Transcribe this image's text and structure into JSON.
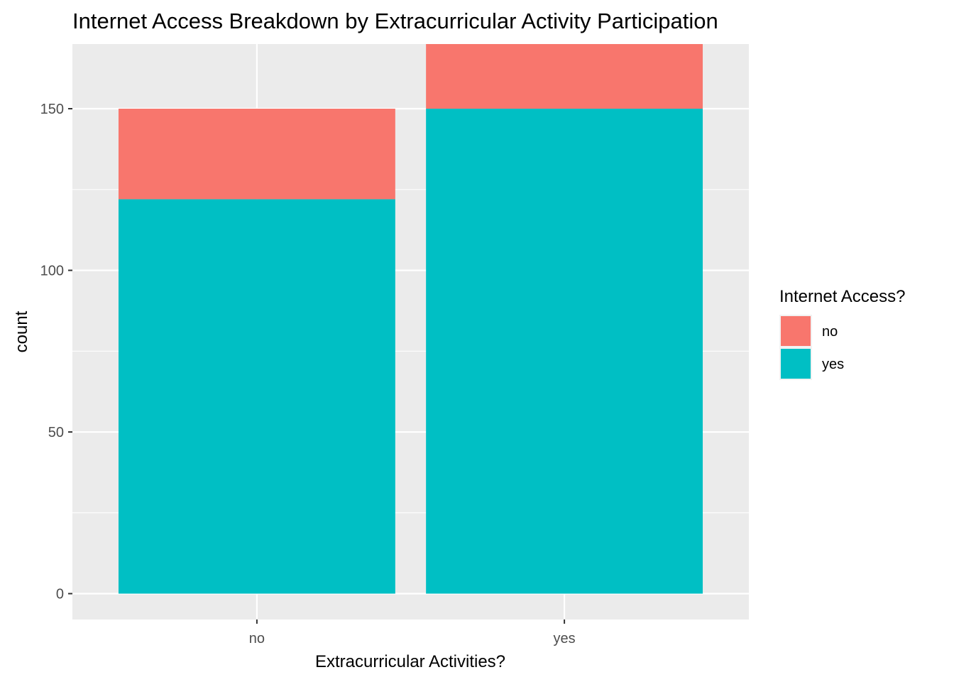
{
  "chart_data": {
    "type": "bar",
    "stacked": true,
    "title": "Internet Access Breakdown by Extracurricular Activity Participation",
    "xlabel": "Extracurricular Activities?",
    "ylabel": "count",
    "categories": [
      "no",
      "yes"
    ],
    "series": [
      {
        "name": "no",
        "values": [
          28,
          20
        ],
        "color": "#F8766D"
      },
      {
        "name": "yes",
        "values": [
          122,
          150
        ],
        "color": "#00BFC4"
      }
    ],
    "ylim": [
      -8,
      170
    ],
    "yticks": [
      0,
      50,
      100,
      150
    ],
    "ytick_labels": [
      "0",
      "50",
      "100",
      "150"
    ],
    "grid": true,
    "panel_background": "#EBEBEB",
    "legend": {
      "title": "Internet Access?",
      "position": "right",
      "entries": [
        "no",
        "yes"
      ]
    }
  }
}
